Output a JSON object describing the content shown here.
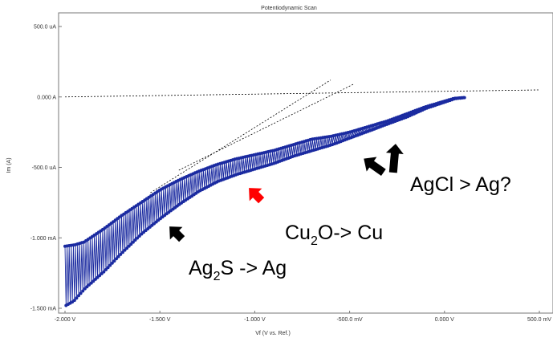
{
  "chart_data": {
    "type": "scatter",
    "title": "Potentiodynamic Scan",
    "xlabel": "Vf (V vs. Ref.)",
    "ylabel": "Im (A)",
    "xlim": [
      -2.0,
      0.5
    ],
    "ylim": [
      -1.5,
      0.5
    ],
    "x_unit": "V",
    "y_unit": "mA",
    "grid": false,
    "legend": "none",
    "x_ticks": [
      {
        "value": -2.0,
        "label": "-2.000 V"
      },
      {
        "value": -1.5,
        "label": "-1.500 V"
      },
      {
        "value": -1.0,
        "label": "-1.000 V"
      },
      {
        "value": -0.5,
        "label": "-500.0 mV"
      },
      {
        "value": 0.0,
        "label": "0.000 V"
      },
      {
        "value": 0.5,
        "label": "500.0 mV"
      }
    ],
    "y_ticks": [
      {
        "value": 0.5,
        "label": "500.0 uA"
      },
      {
        "value": 0.0,
        "label": "0.000 A"
      },
      {
        "value": -0.5,
        "label": "-500.0 uA"
      },
      {
        "value": -1.0,
        "label": "-1.000 mA"
      },
      {
        "value": -1.5,
        "label": "-1.500 mA"
      }
    ],
    "series": [
      {
        "color": "#1a2aa0",
        "envelope_upper": {
          "x": [
            -2.0,
            -1.95,
            -1.9,
            -1.8,
            -1.7,
            -1.6,
            -1.5,
            -1.4,
            -1.3,
            -1.2,
            -1.1,
            -1.0,
            -0.9,
            -0.8,
            -0.7,
            -0.6,
            -0.5,
            -0.4,
            -0.3,
            -0.2,
            -0.1,
            0.0,
            0.05,
            0.1
          ],
          "y": [
            -1.06,
            -1.05,
            -1.03,
            -0.94,
            -0.84,
            -0.75,
            -0.66,
            -0.59,
            -0.53,
            -0.48,
            -0.44,
            -0.41,
            -0.38,
            -0.34,
            -0.3,
            -0.28,
            -0.25,
            -0.21,
            -0.17,
            -0.12,
            -0.07,
            -0.03,
            -0.01,
            -0.005
          ]
        },
        "envelope_lower": {
          "x": [
            -2.0,
            -1.96,
            -1.9,
            -1.8,
            -1.7,
            -1.6,
            -1.5,
            -1.4,
            -1.3,
            -1.2,
            -1.1,
            -1.0,
            -0.9,
            -0.8,
            -0.7,
            -0.6,
            -0.5,
            -0.4,
            -0.3,
            -0.2,
            -0.1,
            0.0,
            0.05,
            0.1
          ],
          "y": [
            -1.48,
            -1.45,
            -1.36,
            -1.24,
            -1.1,
            -0.97,
            -0.86,
            -0.76,
            -0.67,
            -0.6,
            -0.55,
            -0.51,
            -0.47,
            -0.42,
            -0.38,
            -0.34,
            -0.29,
            -0.24,
            -0.19,
            -0.14,
            -0.08,
            -0.035,
            -0.012,
            -0.005
          ]
        }
      }
    ],
    "reference_lines": [
      {
        "x": [
          -2.0,
          0.5
        ],
        "y": [
          0.0,
          0.05
        ]
      },
      {
        "x": [
          -1.55,
          -0.6
        ],
        "y": [
          -0.68,
          0.12
        ]
      },
      {
        "x": [
          -1.4,
          -0.48
        ],
        "y": [
          -0.52,
          0.09
        ]
      }
    ],
    "annotations": [
      {
        "id": "ag2s",
        "text": "Ag",
        "sub": "2",
        "rest": "S -> Ag"
      },
      {
        "id": "cu2o",
        "text": "Cu",
        "sub": "2",
        "rest": "O-> Cu"
      },
      {
        "id": "agcl",
        "text": "AgCl > Ag?",
        "sub": "",
        "rest": ""
      }
    ],
    "arrows": [
      {
        "id": "arrow-ag2s",
        "color": "#000000"
      },
      {
        "id": "arrow-cu2o",
        "color": "#ff0000"
      },
      {
        "id": "arrow-agcl-left",
        "color": "#000000"
      },
      {
        "id": "arrow-agcl-up",
        "color": "#000000"
      }
    ]
  }
}
